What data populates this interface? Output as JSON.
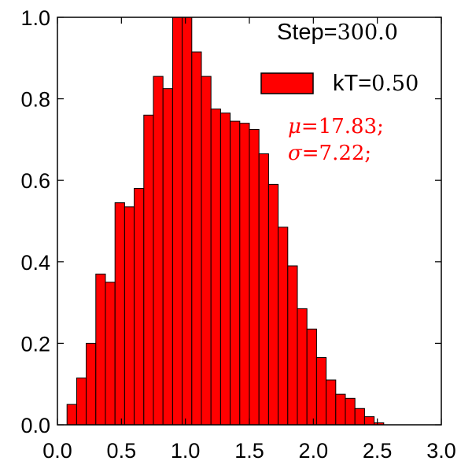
{
  "chart_data": {
    "type": "bar",
    "title": "",
    "xlabel": "",
    "ylabel": "",
    "xlim": [
      0.0,
      3.0
    ],
    "ylim": [
      0.0,
      1.0
    ],
    "x_ticks": [
      "0.0",
      "0.5",
      "1.0",
      "1.5",
      "2.0",
      "2.5",
      "3.0"
    ],
    "y_ticks": [
      "0.0",
      "0.2",
      "0.4",
      "0.6",
      "0.8",
      "1.0"
    ],
    "bin_width": 0.075,
    "bin_start": 0.075,
    "values": [
      0.05,
      0.115,
      0.2,
      0.37,
      0.35,
      0.545,
      0.535,
      0.58,
      0.76,
      0.855,
      0.825,
      1.0,
      1.0,
      0.915,
      0.855,
      0.775,
      0.765,
      0.745,
      0.74,
      0.725,
      0.665,
      0.59,
      0.485,
      0.39,
      0.285,
      0.235,
      0.165,
      0.11,
      0.075,
      0.065,
      0.04,
      0.02,
      0.005
    ],
    "legend": {
      "label_prefix": "kT=",
      "label_value": "0.50",
      "position": "top-right"
    },
    "bar_color": "#ff0000",
    "bar_edge_color": "#000000",
    "annotations": {
      "step_prefix": "Step=",
      "step_value": "300.0",
      "mu_symbol": "μ",
      "mu_value": "=17.83;",
      "sigma_symbol": "σ",
      "sigma_value": "=7.22;",
      "annotation_color": "#ff0000"
    }
  }
}
